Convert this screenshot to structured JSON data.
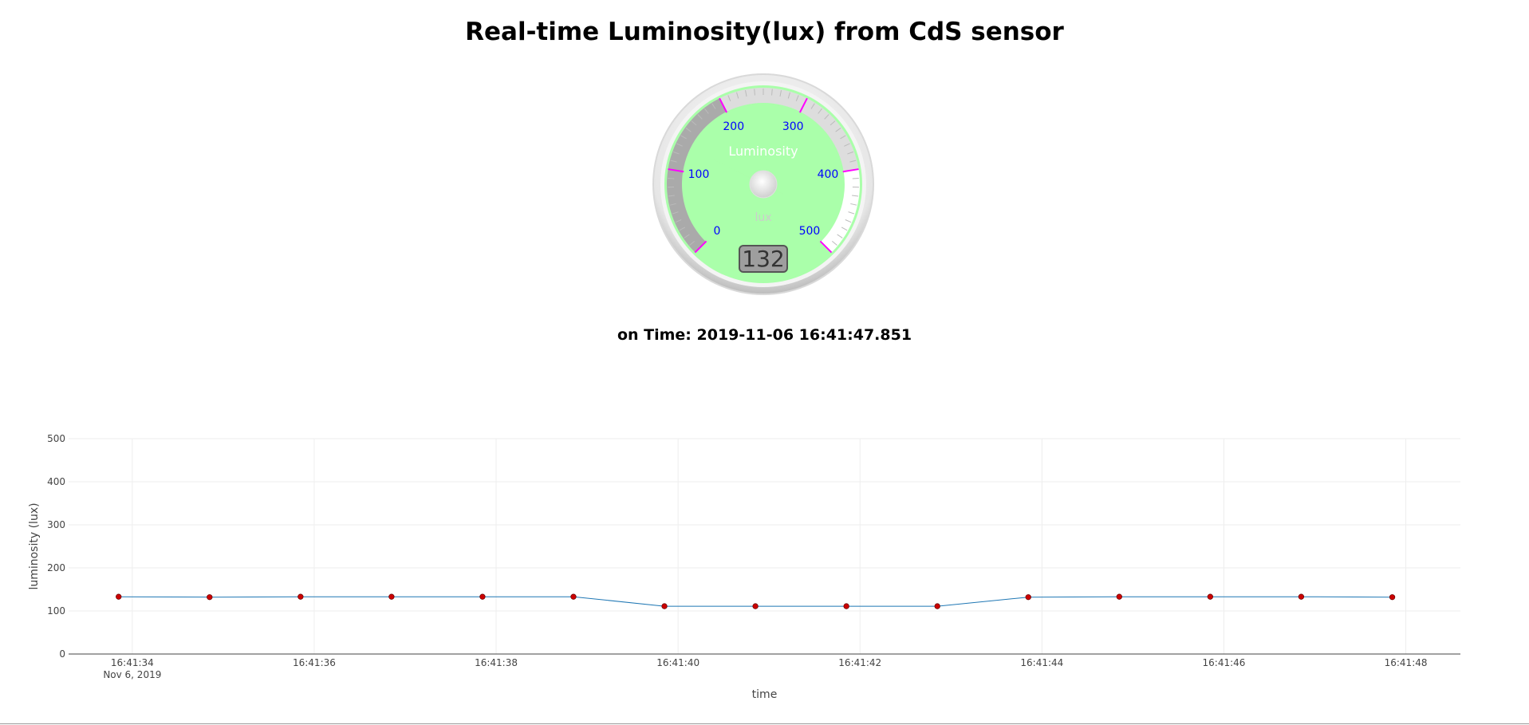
{
  "page": {
    "title": "Real-time Luminosity(lux) from CdS sensor",
    "time_label": "on Time: 2019-11-06 16:41:47.851"
  },
  "gauge": {
    "title": "Luminosity",
    "units": "lux",
    "min": 0,
    "max": 500,
    "major_ticks": [
      "0",
      "100",
      "200",
      "300",
      "400",
      "500"
    ],
    "value": 132,
    "value_text": "132",
    "colors": {
      "face": "#aaffaa",
      "major_tick": "#ff00ff",
      "numbers": "#0000ff",
      "title": "#ffffff",
      "units": "#cccccc",
      "needle": "#ff8a80"
    },
    "highlights": [
      {
        "from": 0,
        "to": 200,
        "color": "#aaaaaa"
      },
      {
        "from": 200,
        "to": 400,
        "color": "#dddddd"
      },
      {
        "from": 400,
        "to": 500,
        "color": "#ffffff"
      }
    ]
  },
  "chart_data": {
    "type": "line",
    "title": "",
    "xlabel": "time",
    "ylabel": "luminosity (lux)",
    "ylim": [
      0,
      500
    ],
    "yticks": [
      0,
      100,
      200,
      300,
      400,
      500
    ],
    "xlim": [
      "2019-11-06 16:41:33.3",
      "2019-11-06 16:41:48.6"
    ],
    "x_ticks": [
      {
        "t": "2019-11-06 16:41:34",
        "label": "16:41:34",
        "sublabel": "Nov 6, 2019"
      },
      {
        "t": "2019-11-06 16:41:36",
        "label": "16:41:36",
        "sublabel": ""
      },
      {
        "t": "2019-11-06 16:41:38",
        "label": "16:41:38",
        "sublabel": ""
      },
      {
        "t": "2019-11-06 16:41:40",
        "label": "16:41:40",
        "sublabel": ""
      },
      {
        "t": "2019-11-06 16:41:42",
        "label": "16:41:42",
        "sublabel": ""
      },
      {
        "t": "2019-11-06 16:41:44",
        "label": "16:41:44",
        "sublabel": ""
      },
      {
        "t": "2019-11-06 16:41:46",
        "label": "16:41:46",
        "sublabel": ""
      },
      {
        "t": "2019-11-06 16:41:48",
        "label": "16:41:48",
        "sublabel": ""
      }
    ],
    "grid": true,
    "series": [
      {
        "line_color": "#1f77b4",
        "marker_color": "#cc0000",
        "x": [
          "2019-11-06 16:41:33.850",
          "2019-11-06 16:41:34.850",
          "2019-11-06 16:41:35.850",
          "2019-11-06 16:41:36.850",
          "2019-11-06 16:41:37.850",
          "2019-11-06 16:41:38.850",
          "2019-11-06 16:41:39.850",
          "2019-11-06 16:41:40.850",
          "2019-11-06 16:41:41.850",
          "2019-11-06 16:41:42.850",
          "2019-11-06 16:41:43.850",
          "2019-11-06 16:41:44.850",
          "2019-11-06 16:41:45.850",
          "2019-11-06 16:41:46.850",
          "2019-11-06 16:41:47.851"
        ],
        "y": [
          133,
          132,
          133,
          133,
          133,
          133,
          111,
          111,
          111,
          111,
          132,
          133,
          133,
          133,
          132
        ]
      }
    ]
  }
}
